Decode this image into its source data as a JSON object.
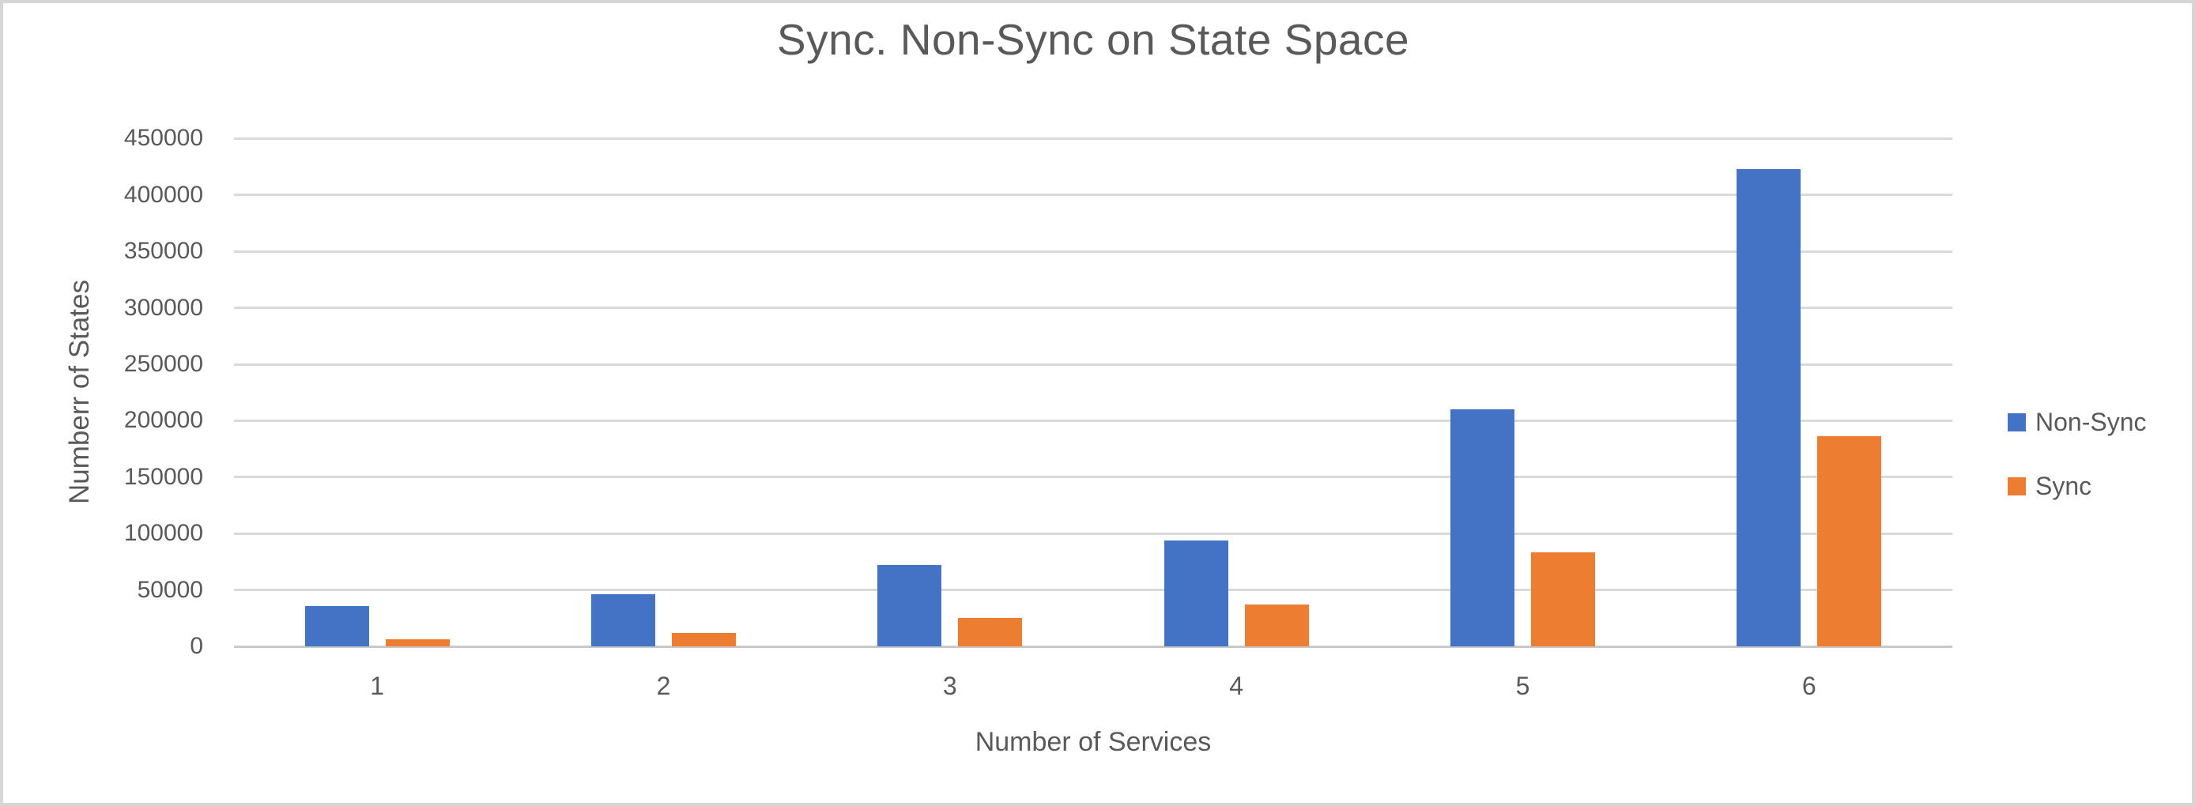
{
  "page": {
    "background_color": "#ffffff",
    "border_color": "#d6d6d6"
  },
  "chart_data": {
    "type": "bar",
    "title": "Sync. Non-Sync on State Space",
    "xlabel": "Number of Services",
    "ylabel": "Numberr of States",
    "categories": [
      "1",
      "2",
      "3",
      "4",
      "5",
      "6"
    ],
    "series": [
      {
        "name": "Non-Sync",
        "color": "#4472C4",
        "values": [
          36000,
          46000,
          72000,
          94000,
          210000,
          423000
        ]
      },
      {
        "name": "Sync",
        "color": "#ED7D31",
        "values": [
          6000,
          12000,
          25000,
          37000,
          83000,
          186000
        ]
      }
    ],
    "ylim": [
      0,
      450000
    ],
    "ytick_step": 50000,
    "ytick_labels": [
      "0",
      "50000",
      "100000",
      "150000",
      "200000",
      "250000",
      "300000",
      "350000",
      "400000",
      "450000"
    ],
    "grid": true,
    "legend_position": "right",
    "colors": {
      "text": "#595959",
      "gridline": "#d9d9d9",
      "axis_line": "#c9c9c9"
    }
  }
}
